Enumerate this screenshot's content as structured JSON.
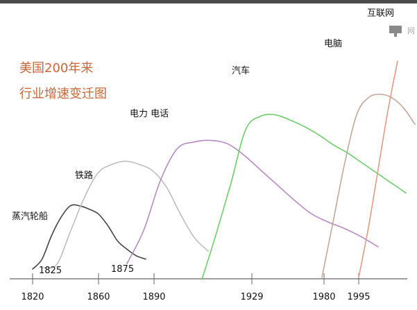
{
  "title_lines": [
    "美国200年来",
    "行业增速变迁图"
  ],
  "chart_data": {
    "type": "line",
    "title": "美国200年来行业增速变迁图",
    "xlabel": "",
    "ylabel": "",
    "x_ticks": [
      1820,
      1860,
      1890,
      1929,
      1980,
      1995
    ],
    "grid": false,
    "legend": "none",
    "series": [
      {
        "name": "蒸汽轮船",
        "start_year": "1825",
        "color": "#444444",
        "values": [
          0,
          0.06,
          0.2,
          0.31,
          0.38,
          0.38,
          0.36,
          0.33,
          0.26,
          0.17,
          0.12,
          0.08,
          0.06
        ]
      },
      {
        "name": "铁路",
        "start_year": "1875",
        "color": "#bdbdbd",
        "values": [
          0,
          0.02,
          0.22,
          0.42,
          0.57,
          0.62,
          0.64,
          0.62,
          0.58,
          0.48,
          0.32,
          0.18,
          0.1
        ]
      },
      {
        "name": "电力 电话",
        "start_year": "",
        "color": "#b48ac0",
        "values": [
          0,
          0.2,
          0.5,
          0.69,
          0.73,
          0.74,
          0.72,
          0.65,
          0.56,
          0.47,
          0.38,
          0.3,
          0.25,
          0.21,
          0.16,
          0.1
        ]
      },
      {
        "name": "汽车",
        "start_year": "1910",
        "color": "#6dcc6b",
        "values": [
          0,
          0.28,
          0.58,
          0.9,
          0.98,
          0.99,
          0.96,
          0.92,
          0.87,
          0.81,
          0.76,
          0.7,
          0.64,
          0.58,
          0.52
        ]
      },
      {
        "name": "电脑",
        "start_year": "1980",
        "color": "#c4a79a",
        "values": [
          0,
          0.35,
          0.7,
          0.98,
          1.08,
          1.1,
          1.08,
          1.02,
          0.92
        ]
      },
      {
        "name": "互联网",
        "start_year": "",
        "color": "#e49a86",
        "values": [
          0,
          0.3,
          0.65,
          1.0,
          1.3
        ]
      }
    ]
  },
  "icons": {
    "logo": "network-logo-icon",
    "logo_text": "网"
  }
}
